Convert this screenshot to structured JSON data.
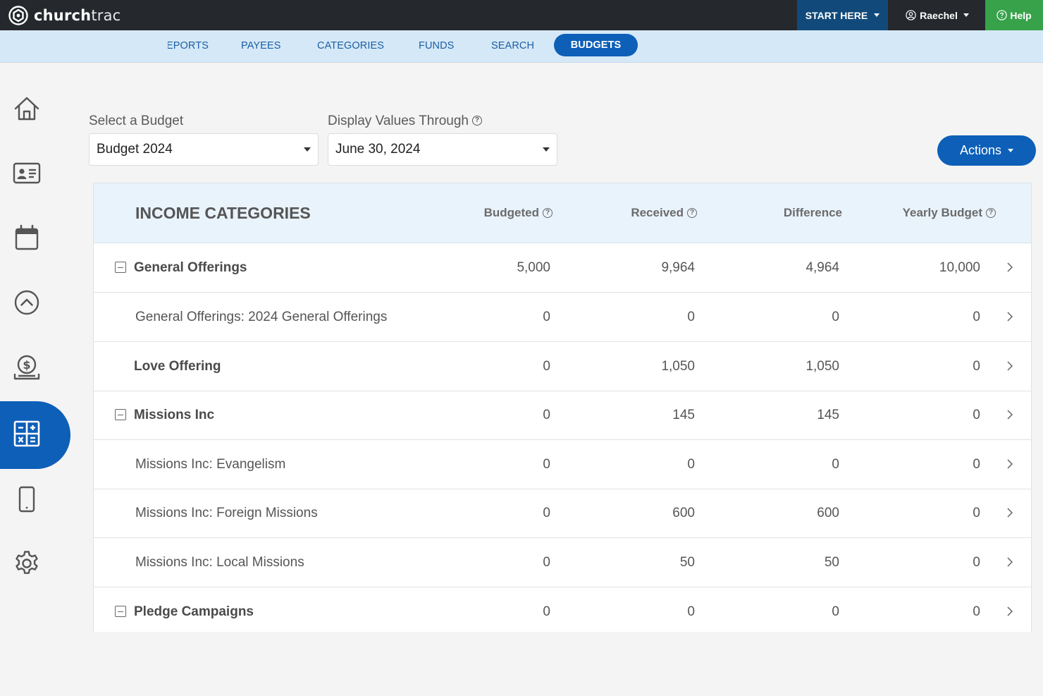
{
  "app": {
    "logo_bold": "church",
    "logo_light": "trac"
  },
  "topbar": {
    "start_here": "START HERE",
    "user": "Raechel",
    "help": "Help"
  },
  "subnav": {
    "items": [
      "EPORTS",
      "PAYEES",
      "CATEGORIES",
      "FUNDS",
      "SEARCH",
      "BUDGETS"
    ],
    "active": "BUDGETS"
  },
  "sidebar": {
    "items": [
      "home-icon",
      "contacts-icon",
      "calendar-icon",
      "chevron-up-circle-icon",
      "giving-icon",
      "accounting-icon",
      "mobile-icon",
      "settings-icon"
    ],
    "active": "accounting-icon"
  },
  "filters": {
    "budget_label": "Select a Budget",
    "budget_value": "Budget 2024",
    "through_label": "Display Values Through",
    "through_value": "June 30, 2024"
  },
  "actions_label": "Actions",
  "table": {
    "title": "INCOME CATEGORIES",
    "columns": {
      "budgeted": "Budgeted",
      "received": "Received",
      "difference": "Difference",
      "yearly": "Yearly Budget"
    },
    "rows": [
      {
        "name": "General Offerings",
        "budgeted": "5,000",
        "received": "9,964",
        "difference": "4,964",
        "yearly": "10,000"
      },
      {
        "name": "General Offerings: 2024 General Offerings",
        "budgeted": "0",
        "received": "0",
        "difference": "0",
        "yearly": "0"
      },
      {
        "name": "Love Offering",
        "budgeted": "0",
        "received": "1,050",
        "difference": "1,050",
        "yearly": "0"
      },
      {
        "name": "Missions Inc",
        "budgeted": "0",
        "received": "145",
        "difference": "145",
        "yearly": "0"
      },
      {
        "name": "Missions Inc: Evangelism",
        "budgeted": "0",
        "received": "0",
        "difference": "0",
        "yearly": "0"
      },
      {
        "name": "Missions Inc: Foreign Missions",
        "budgeted": "0",
        "received": "600",
        "difference": "600",
        "yearly": "0"
      },
      {
        "name": "Missions Inc: Local Missions",
        "budgeted": "0",
        "received": "50",
        "difference": "50",
        "yearly": "0"
      },
      {
        "name": "Pledge Campaigns",
        "budgeted": "0",
        "received": "0",
        "difference": "0",
        "yearly": "0"
      }
    ]
  },
  "colors": {
    "topbar": "#25282d",
    "start_here": "#114a7a",
    "help": "#37a24a",
    "primary": "#0d5fb8",
    "subnav_bg": "#d5e8f7",
    "table_header_bg": "#e9f3fb"
  }
}
